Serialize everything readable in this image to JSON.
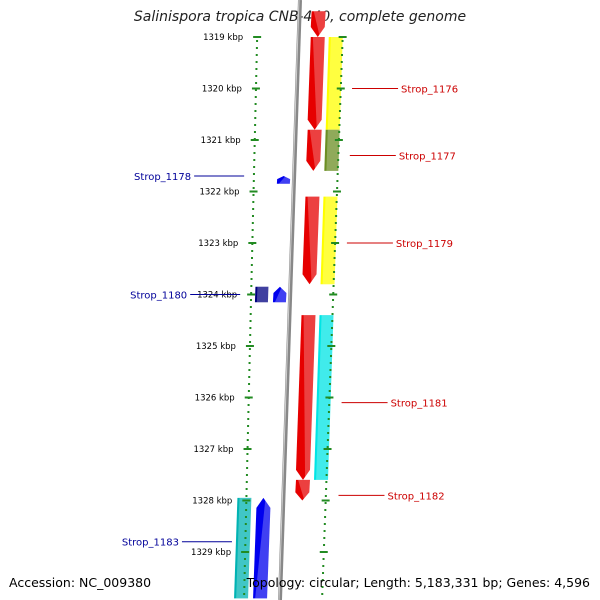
{
  "title": "Salinispora tropica CNB-440, complete genome",
  "footer": {
    "accession": "Accession: NC_009380",
    "topology": "Topology: circular; Length: 5,183,331 bp; Genes: 4,596"
  },
  "scale": {
    "unit": "kbp",
    "tick_labels": [
      "1319 kbp",
      "1320 kbp",
      "1321 kbp",
      "1322 kbp",
      "1323 kbp",
      "1324 kbp",
      "1325 kbp",
      "1326 kbp",
      "1327 kbp",
      "1328 kbp",
      "1329 kbp"
    ]
  },
  "colors": {
    "forward_cds": "#e60000",
    "forward_feature": "#ffff00",
    "forward_feature_alt": "#6b8e23",
    "forward_feature_cyan": "#00e5e5",
    "reverse_cds": "#0000ee",
    "reverse_dark": "#000080",
    "reverse_cyan": "#00b3b3",
    "axis_gray": "#888888",
    "tick_green": "#228b22"
  },
  "gene_labels": [
    {
      "name": "Strop_1176",
      "strand": "forward",
      "kbp": 1320.0
    },
    {
      "name": "Strop_1177",
      "strand": "forward",
      "kbp": 1321.3
    },
    {
      "name": "Strop_1179",
      "strand": "forward",
      "kbp": 1323.0
    },
    {
      "name": "Strop_1181",
      "strand": "forward",
      "kbp": 1326.1
    },
    {
      "name": "Strop_1182",
      "strand": "forward",
      "kbp": 1327.9
    },
    {
      "name": "Strop_1178",
      "strand": "reverse",
      "kbp": 1321.7
    },
    {
      "name": "Strop_1180",
      "strand": "reverse",
      "kbp": 1324.0
    },
    {
      "name": "Strop_1183",
      "strand": "reverse",
      "kbp": 1328.8
    }
  ],
  "features": [
    {
      "strand": "forward",
      "type": "cds",
      "start_kbp": 1318.5,
      "end_kbp": 1319.0,
      "color": "#e60000"
    },
    {
      "strand": "forward",
      "type": "cds",
      "start_kbp": 1319.0,
      "end_kbp": 1320.8,
      "color": "#e60000"
    },
    {
      "strand": "forward",
      "type": "feature",
      "start_kbp": 1319.0,
      "end_kbp": 1320.8,
      "color": "#ffff00"
    },
    {
      "strand": "forward",
      "type": "cds",
      "start_kbp": 1320.8,
      "end_kbp": 1321.6,
      "color": "#e60000"
    },
    {
      "strand": "forward",
      "type": "feature",
      "start_kbp": 1320.8,
      "end_kbp": 1321.6,
      "color": "#6b8e23"
    },
    {
      "strand": "forward",
      "type": "cds",
      "start_kbp": 1322.1,
      "end_kbp": 1323.8,
      "color": "#e60000"
    },
    {
      "strand": "forward",
      "type": "feature",
      "start_kbp": 1322.1,
      "end_kbp": 1323.8,
      "color": "#ffff00"
    },
    {
      "strand": "forward",
      "type": "cds",
      "start_kbp": 1324.4,
      "end_kbp": 1327.6,
      "color": "#e60000"
    },
    {
      "strand": "forward",
      "type": "feature",
      "start_kbp": 1324.4,
      "end_kbp": 1327.6,
      "color": "#00e5e5"
    },
    {
      "strand": "forward",
      "type": "cds",
      "start_kbp": 1327.6,
      "end_kbp": 1328.0,
      "color": "#e60000"
    },
    {
      "strand": "reverse",
      "type": "cds",
      "start_kbp": 1321.7,
      "end_kbp": 1321.85,
      "color": "#0000ee"
    },
    {
      "strand": "reverse",
      "type": "cds",
      "start_kbp": 1323.85,
      "end_kbp": 1324.15,
      "color": "#000080"
    },
    {
      "strand": "reverse",
      "type": "cds",
      "start_kbp": 1323.85,
      "end_kbp": 1324.15,
      "color": "#0000ee"
    },
    {
      "strand": "reverse",
      "type": "cds",
      "start_kbp": 1327.95,
      "end_kbp": 1329.9,
      "color": "#0000ee"
    },
    {
      "strand": "reverse",
      "type": "feature",
      "start_kbp": 1327.95,
      "end_kbp": 1329.9,
      "color": "#00b3b3"
    }
  ]
}
